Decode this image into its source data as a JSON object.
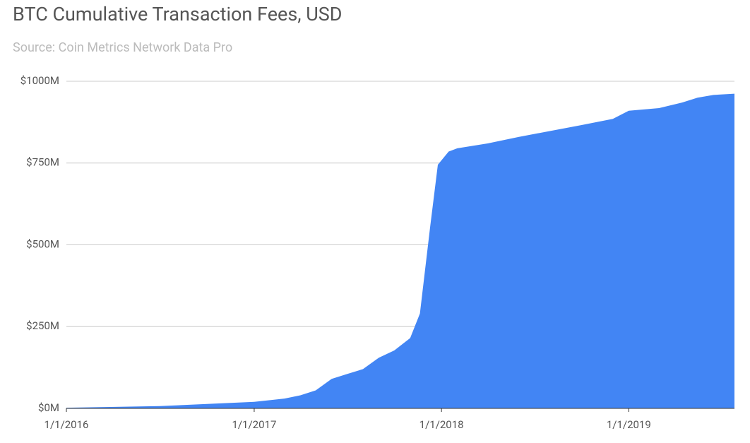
{
  "chart_data": {
    "type": "area",
    "title": "BTC Cumulative Transaction Fees, USD",
    "subtitle": "Source: Coin Metrics Network Data Pro",
    "x": [
      "2016-01-01",
      "2016-07-01",
      "2017-01-01",
      "2017-03-01",
      "2017-04-01",
      "2017-05-01",
      "2017-06-01",
      "2017-07-01",
      "2017-08-01",
      "2017-09-01",
      "2017-10-01",
      "2017-11-01",
      "2017-11-20",
      "2017-12-10",
      "2017-12-25",
      "2018-01-15",
      "2018-02-01",
      "2018-04-01",
      "2018-06-01",
      "2018-08-01",
      "2018-10-01",
      "2018-12-01",
      "2019-01-01",
      "2019-03-01",
      "2019-04-15",
      "2019-05-15",
      "2019-06-15",
      "2019-07-26"
    ],
    "values": [
      2,
      7,
      20,
      30,
      40,
      55,
      90,
      105,
      120,
      155,
      177,
      215,
      290,
      555,
      745,
      785,
      795,
      810,
      830,
      848,
      866,
      885,
      910,
      918,
      935,
      950,
      958,
      962
    ],
    "color": "#4285f4",
    "xlim": [
      "2016-01-01",
      "2019-07-26"
    ],
    "xticks": [
      {
        "value": "2016-01-01",
        "label": "1/1/2016"
      },
      {
        "value": "2017-01-01",
        "label": "1/1/2017"
      },
      {
        "value": "2018-01-01",
        "label": "1/1/2018"
      },
      {
        "value": "2019-01-01",
        "label": "1/1/2019"
      }
    ],
    "ylim": [
      0,
      1000
    ],
    "yticks": [
      {
        "value": 0,
        "label": "$0M"
      },
      {
        "value": 250,
        "label": "$250M"
      },
      {
        "value": 500,
        "label": "$500M"
      },
      {
        "value": 750,
        "label": "$750M"
      },
      {
        "value": 1000,
        "label": "$1000M"
      }
    ],
    "grid": true
  }
}
